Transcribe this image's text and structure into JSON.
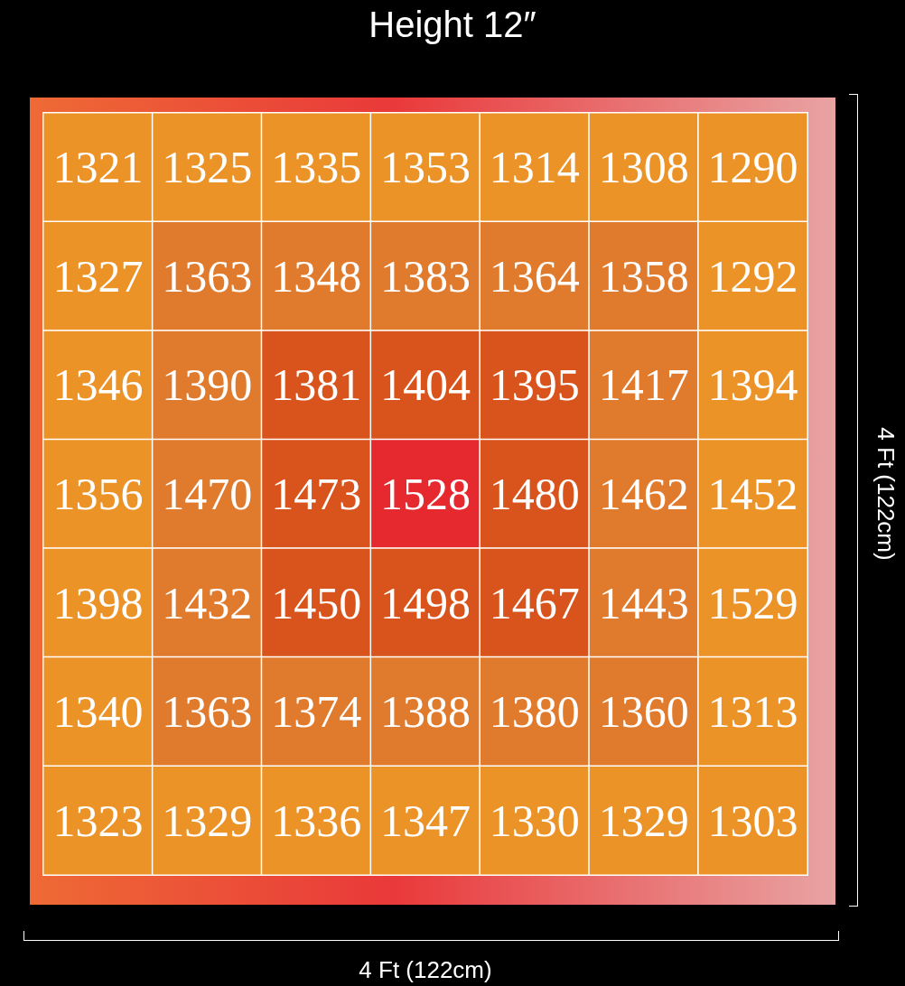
{
  "chart_data": {
    "type": "heatmap",
    "title": "Height 12″",
    "xlabel": "4 Ft (122cm)",
    "ylabel": "4 Ft (122cm)",
    "categories": [
      null,
      null,
      null,
      null,
      null,
      null,
      null
    ],
    "y_categories": [
      null,
      null,
      null,
      null,
      null,
      null,
      null
    ],
    "cells": [
      [
        1321,
        1325,
        1335,
        1353,
        1314,
        1308,
        1290
      ],
      [
        1327,
        1363,
        1348,
        1383,
        1364,
        1358,
        1292
      ],
      [
        1346,
        1390,
        1381,
        1404,
        1395,
        1417,
        1394
      ],
      [
        1356,
        1470,
        1473,
        1528,
        1480,
        1462,
        1452
      ],
      [
        1398,
        1432,
        1450,
        1498,
        1467,
        1443,
        1529
      ],
      [
        1340,
        1363,
        1374,
        1388,
        1380,
        1360,
        1313
      ],
      [
        1323,
        1329,
        1336,
        1347,
        1330,
        1329,
        1303
      ]
    ],
    "colors": [
      [
        "#ec9328",
        "#ec9328",
        "#ec9328",
        "#ec9328",
        "#ec9328",
        "#ec9328",
        "#ec9328"
      ],
      [
        "#ec9328",
        "#e07b2e",
        "#e07b2e",
        "#e07b2e",
        "#e07b2e",
        "#e07b2e",
        "#ec9328"
      ],
      [
        "#ec9328",
        "#e07b2e",
        "#d9541c",
        "#d9541c",
        "#d9541c",
        "#e07b2e",
        "#ec9328"
      ],
      [
        "#ec9328",
        "#e07b2e",
        "#d9541c",
        "#e6282f",
        "#d9541c",
        "#e07b2e",
        "#ec9328"
      ],
      [
        "#ec9328",
        "#e07b2e",
        "#d9541c",
        "#d9541c",
        "#d9541c",
        "#e07b2e",
        "#ec9328"
      ],
      [
        "#ec9328",
        "#e07b2e",
        "#e07b2e",
        "#e07b2e",
        "#e07b2e",
        "#e07b2e",
        "#ec9328"
      ],
      [
        "#ec9328",
        "#ec9328",
        "#ec9328",
        "#ec9328",
        "#ec9328",
        "#ec9328",
        "#ec9328"
      ]
    ],
    "data_labels": true
  }
}
